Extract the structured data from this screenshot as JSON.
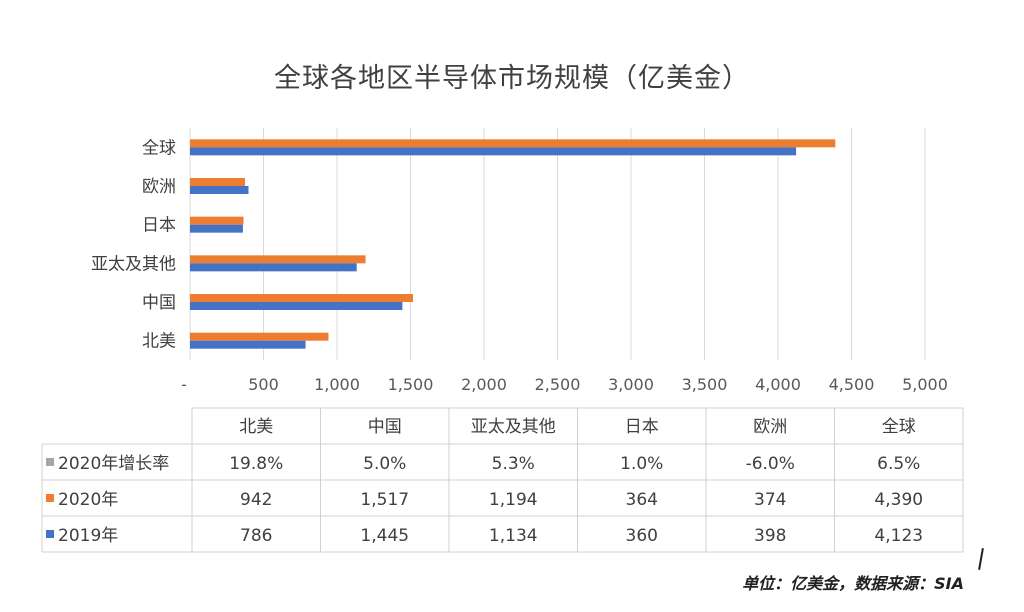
{
  "chart_data": {
    "type": "bar",
    "orientation": "horizontal",
    "title": "全球各地区半导体市场规模（亿美金）",
    "categories": [
      "北美",
      "中国",
      "亚太及其他",
      "日本",
      "欧洲",
      "全球"
    ],
    "series": [
      {
        "name": "2019年",
        "values": [
          786,
          1445,
          1134,
          360,
          398,
          4123
        ],
        "color": "#4472c4"
      },
      {
        "name": "2020年",
        "values": [
          942,
          1517,
          1194,
          364,
          374,
          4390
        ],
        "color": "#ed7d31"
      }
    ],
    "table_extra_row": {
      "name": "2020年增长率",
      "values": [
        "19.8%",
        "5.0%",
        "5.3%",
        "1.0%",
        "-6.0%",
        "6.5%"
      ],
      "color": "#a5a5a5"
    },
    "table_values_2020": [
      "942",
      "1,517",
      "1,194",
      "364",
      "374",
      "4,390"
    ],
    "table_values_2019": [
      "786",
      "1,445",
      "1,134",
      "360",
      "398",
      "4,123"
    ],
    "xlim": [
      0,
      5000
    ],
    "xticks": [
      "-",
      "500",
      "1,000",
      "1,500",
      "2,000",
      "2,500",
      "3,000",
      "3,500",
      "4,000",
      "4,500",
      "5,000"
    ],
    "grid": true,
    "source_note": "单位：亿美金，数据来源：SIA"
  }
}
